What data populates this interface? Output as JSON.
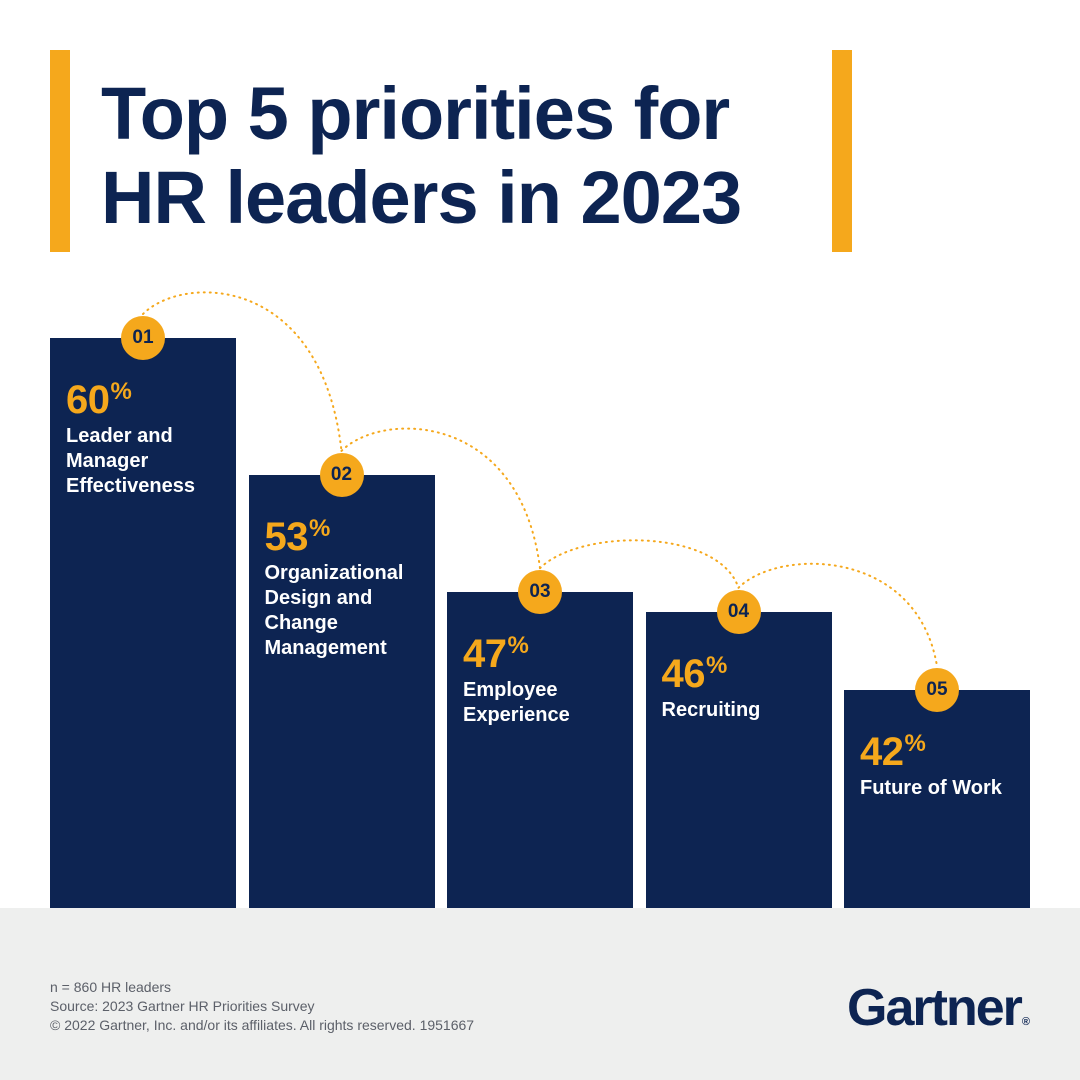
{
  "title": {
    "line1": "Top 5 priorities for",
    "line2": "HR leaders in 2023"
  },
  "colors": {
    "navy": "#0D2452",
    "accent": "#F5A81C",
    "footer_bg": "#EEEFEE"
  },
  "chart_data": {
    "type": "bar",
    "categories": [
      "Leader and Manager Effectiveness",
      "Organizational Design and Change Management",
      "Employee Experience",
      "Recruiting",
      "Future of Work"
    ],
    "ranks": [
      "01",
      "02",
      "03",
      "04",
      "05"
    ],
    "values": [
      60,
      53,
      47,
      46,
      42
    ],
    "value_labels": [
      "60",
      "53",
      "47",
      "46",
      "42"
    ],
    "unit": "%",
    "ylim": [
      0,
      60
    ],
    "grid": false
  },
  "footer": {
    "note": "n = 860 HR leaders",
    "source": "Source: 2023 Gartner HR Priorities Survey",
    "copyright": "© 2022 Gartner, Inc. and/or its affiliates. All rights reserved. 1951667"
  },
  "logo": {
    "text": "Gartner",
    "mark": "®"
  }
}
